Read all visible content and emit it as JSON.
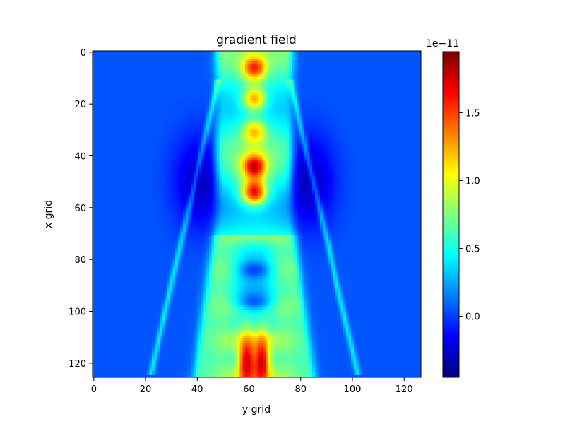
{
  "chart_data": {
    "type": "heatmap",
    "title": "gradient field",
    "xlabel": "y grid",
    "ylabel": "x grid",
    "x_range": [
      -0.5,
      126.5
    ],
    "y_range": [
      -0.5,
      125.5
    ],
    "y_inverted": true,
    "x_ticks": [
      "0",
      "20",
      "40",
      "60",
      "80",
      "100",
      "120"
    ],
    "y_ticks": [
      "0",
      "20",
      "40",
      "60",
      "80",
      "100",
      "120"
    ],
    "colormap": "jet",
    "colorbar": {
      "min": -0.45,
      "max": 1.95,
      "scale_label": "1e−11",
      "ticks": [
        "0.0",
        "0.5",
        "1.0",
        "1.5"
      ],
      "tick_values": [
        0.0,
        0.5,
        1.0,
        1.5
      ]
    },
    "field_features": {
      "background": 0.05,
      "center_column": 62,
      "center_column_value": 0.75,
      "peaks": [
        {
          "x": 62,
          "y": 6,
          "value": 1.7
        },
        {
          "x": 62,
          "y": 18,
          "value": 1.35
        },
        {
          "x": 62,
          "y": 31,
          "value": 1.3
        },
        {
          "x": 62,
          "y": 44,
          "value": 1.95
        },
        {
          "x": 62,
          "y": 54,
          "value": 1.8
        },
        {
          "x": 62,
          "y": 120,
          "value": 1.9
        }
      ],
      "troughs": [
        {
          "x": 41,
          "y": 50,
          "value": -0.3
        },
        {
          "x": 83,
          "y": 50,
          "value": -0.3
        },
        {
          "x": 62,
          "y": 84,
          "value": 0.0
        },
        {
          "x": 62,
          "y": 96,
          "value": 0.05
        }
      ]
    }
  }
}
